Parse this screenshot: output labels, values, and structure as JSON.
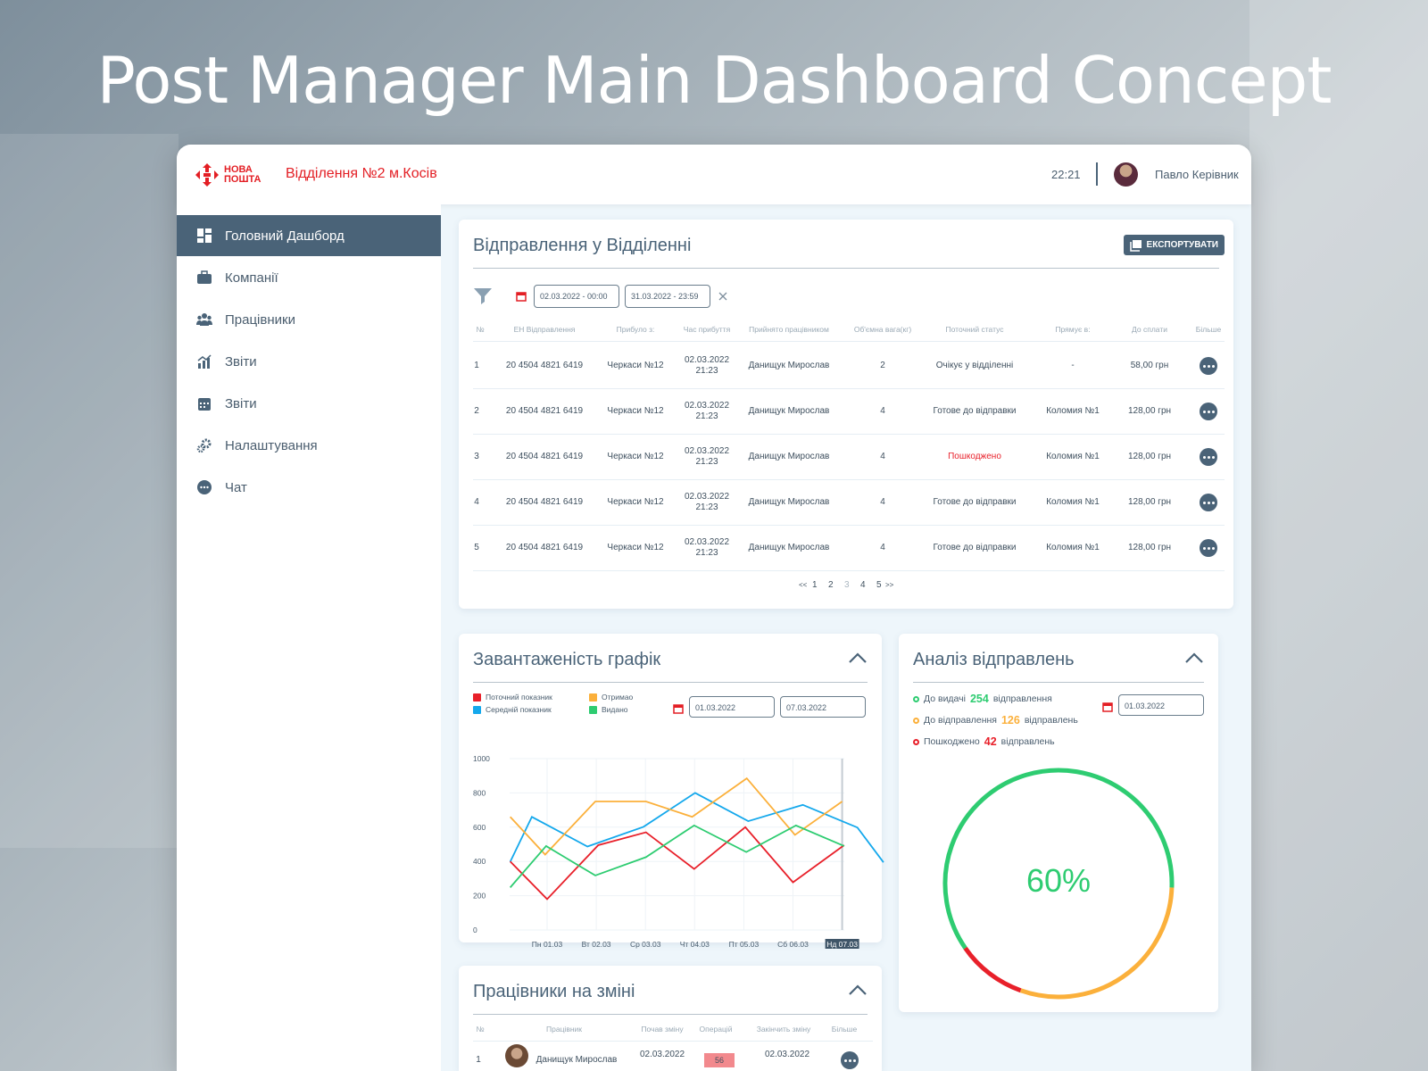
{
  "page_title": "Post Manager Main Dashboard Concept",
  "header": {
    "logo": "НОВА ПОШТА",
    "logo_line1": "НОВА",
    "logo_line2": "ПОШТА",
    "branch": "Відділення №2 м.Косів",
    "time": "22:21",
    "user": "Павло Керівник"
  },
  "sidebar": {
    "items": [
      {
        "label": "Головний Дашборд",
        "icon": "dashboard-icon",
        "active": true
      },
      {
        "label": "Компанії",
        "icon": "briefcase-icon"
      },
      {
        "label": "Працівники",
        "icon": "users-icon"
      },
      {
        "label": "Звіти",
        "icon": "chart-icon"
      },
      {
        "label": "Звіти",
        "icon": "calendar-icon"
      },
      {
        "label": "Налаштування",
        "icon": "gears-icon"
      },
      {
        "label": "Чат",
        "icon": "chat-icon"
      }
    ]
  },
  "shipments": {
    "title": "Відправлення у Відділенні",
    "export": "ЕКСПОРТУВАТИ",
    "date_from": "02.03.2022 - 00:00",
    "date_to": "31.03.2022 - 23:59",
    "columns": [
      "№",
      "ЕН Відправлення",
      "Прибуло з:",
      "Час прибуття",
      "Прийнято працівником",
      "Об'ємна вага(кг)",
      "Поточний статус",
      "Прямує в:",
      "До сплати",
      "Більше"
    ],
    "rows": [
      {
        "n": "1",
        "en": "20 4504 4821 6419",
        "from": "Черкаси №12",
        "date": "02.03.2022",
        "time": "21:23",
        "by": "Данищук Мирослав",
        "w": "2",
        "status": "Очікує у відділенні",
        "to": "-",
        "pay": "58,00 грн",
        "damaged": false
      },
      {
        "n": "2",
        "en": "20 4504 4821 6419",
        "from": "Черкаси №12",
        "date": "02.03.2022",
        "time": "21:23",
        "by": "Данищук Мирослав",
        "w": "4",
        "status": "Готове до відправки",
        "to": "Коломия №1",
        "pay": "128,00 грн",
        "damaged": false
      },
      {
        "n": "3",
        "en": "20 4504 4821 6419",
        "from": "Черкаси №12",
        "date": "02.03.2022",
        "time": "21:23",
        "by": "Данищук Мирослав",
        "w": "4",
        "status": "Пошкоджено",
        "to": "Коломия №1",
        "pay": "128,00 грн",
        "damaged": true
      },
      {
        "n": "4",
        "en": "20 4504 4821 6419",
        "from": "Черкаси №12",
        "date": "02.03.2022",
        "time": "21:23",
        "by": "Данищук Мирослав",
        "w": "4",
        "status": "Готове до відправки",
        "to": "Коломия №1",
        "pay": "128,00 грн",
        "damaged": false
      },
      {
        "n": "5",
        "en": "20 4504 4821 6419",
        "from": "Черкаси №12",
        "date": "02.03.2022",
        "time": "21:23",
        "by": "Данищук Мирослав",
        "w": "4",
        "status": "Готове до відправки",
        "to": "Коломия №1",
        "pay": "128,00 грн",
        "damaged": false
      }
    ],
    "pagination": {
      "prev": "<<",
      "pages": [
        "1",
        "2",
        "3",
        "4",
        "5"
      ],
      "current": "3",
      "next": ">>"
    }
  },
  "load_chart": {
    "title": "Завантаженість графік",
    "date_from": "01.03.2022",
    "date_to": "07.03.2022"
  },
  "chart_data": {
    "type": "line",
    "ylim": [
      0,
      1000
    ],
    "yticks": [
      0,
      200,
      400,
      600,
      800,
      1000
    ],
    "categories": [
      "Пн 01.03",
      "Вт 02.03",
      "Ср 03.03",
      "Чт 04.03",
      "Пт 05.03",
      "Сб 06.03",
      "Нд 07.03"
    ],
    "highlighted": "Нд 07.03",
    "grid": true,
    "legend": "top-left",
    "series": [
      {
        "name": "Поточний показник",
        "color": "#e8202a",
        "points": [
          [
            0.25,
            400
          ],
          [
            1,
            180
          ],
          [
            2.04,
            495
          ],
          [
            3.01,
            570
          ],
          [
            3.99,
            356
          ],
          [
            5.03,
            600
          ],
          [
            6,
            278
          ],
          [
            7.04,
            495
          ]
        ]
      },
      {
        "name": "Середній показник",
        "color": "#14a8ec",
        "points": [
          [
            0.25,
            398
          ],
          [
            0.69,
            660
          ],
          [
            1.82,
            487
          ],
          [
            2.96,
            602
          ],
          [
            4.01,
            800
          ],
          [
            5.09,
            635
          ],
          [
            6.2,
            730
          ],
          [
            7.31,
            598
          ],
          [
            7.84,
            395
          ]
        ]
      },
      {
        "name": "Отримао",
        "color": "#fbb03b",
        "points": [
          [
            0.25,
            660
          ],
          [
            0.96,
            440
          ],
          [
            1.98,
            750
          ],
          [
            3.01,
            750
          ],
          [
            3.95,
            660
          ],
          [
            5.06,
            885
          ],
          [
            6.04,
            555
          ],
          [
            7,
            750
          ]
        ]
      },
      {
        "name": "Видано",
        "color": "#2ecc71",
        "points": [
          [
            0.25,
            248
          ],
          [
            0.98,
            490
          ],
          [
            1.98,
            318
          ],
          [
            3.01,
            425
          ],
          [
            3.99,
            610
          ],
          [
            5.05,
            455
          ],
          [
            6.06,
            610
          ],
          [
            7.04,
            490
          ]
        ]
      }
    ]
  },
  "analysis": {
    "title": "Аналіз відправлень",
    "date": "01.03.2022",
    "percent": "60%",
    "stats": [
      {
        "label": "До видачі",
        "value": 254,
        "suffix": "відправлення",
        "color": "#2ecc71"
      },
      {
        "label": "До відправлення",
        "value": 126,
        "suffix": "відправлень",
        "color": "#fbb03b"
      },
      {
        "label": "Пошкоджено",
        "value": 42,
        "suffix": "відправлень",
        "color": "#e8202a"
      }
    ]
  },
  "employees": {
    "title": "Працівники на зміні",
    "columns": [
      "№",
      "Працівник",
      "Почав зміну",
      "Операцій",
      "Закінчить зміну",
      "Більше"
    ],
    "rows": [
      {
        "n": "1",
        "name": "Данищук Мирослав",
        "start": "02.03.2022",
        "ops": "56",
        "end": "02.03.2022"
      }
    ]
  }
}
